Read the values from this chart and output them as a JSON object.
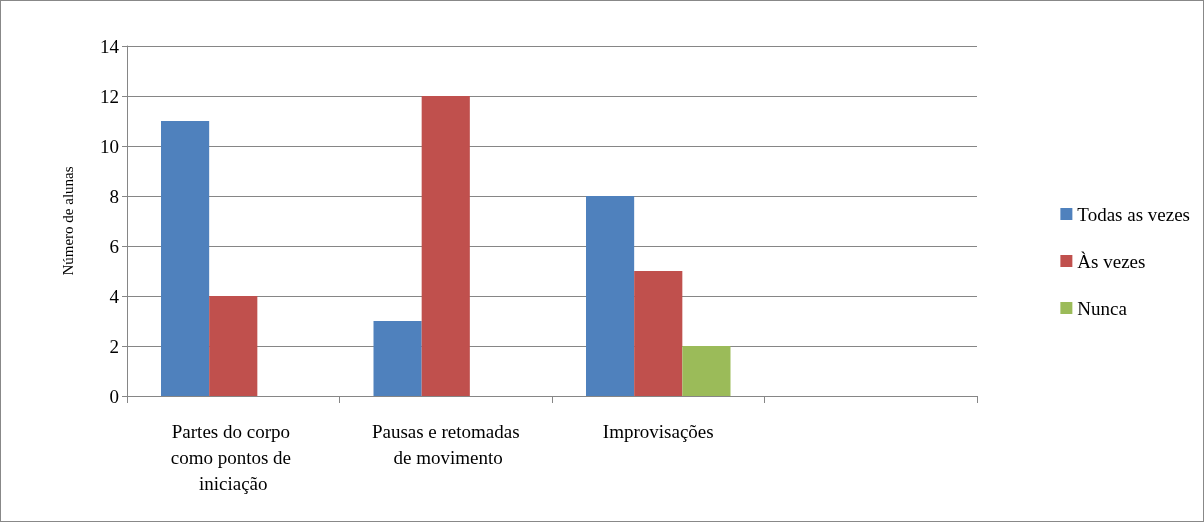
{
  "chart_data": {
    "type": "bar",
    "ylabel": "Número de alunas",
    "categories": [
      "Partes do corpo como pontos de iniciação",
      "Pausas e retomadas de movimento",
      "Improvisações",
      null
    ],
    "series": [
      {
        "name": "Todas as vezes",
        "color": "#4f81bd",
        "values": [
          11,
          3,
          8,
          null
        ]
      },
      {
        "name": "Às vezes",
        "color": "#c0504d",
        "values": [
          4,
          12,
          5,
          null
        ]
      },
      {
        "name": "Nunca",
        "color": "#9bbb59",
        "values": [
          0,
          0,
          2,
          null
        ]
      }
    ],
    "ylim": [
      0,
      14
    ],
    "yticks": [
      0,
      2,
      4,
      6,
      8,
      10,
      12,
      14
    ],
    "grid": "y",
    "legend": "right"
  }
}
